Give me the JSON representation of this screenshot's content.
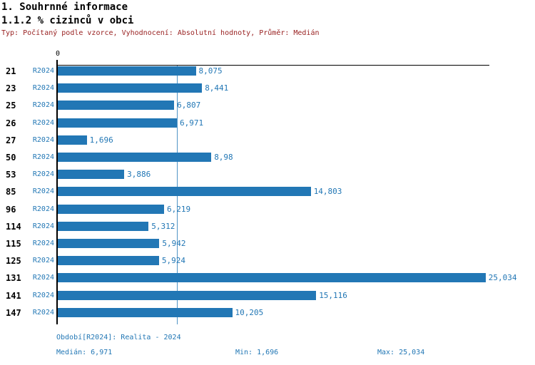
{
  "header": {
    "title1": "1. Souhrnné informace",
    "title2": "1.1.2 % cizinců v obci",
    "subtitle": "Typ: Počítaný podle vzorce, Vyhodnocení: Absolutní hodnoty, Průměr: Medián"
  },
  "chart_data": {
    "type": "bar",
    "orientation": "horizontal",
    "title": "1.1.2 % cizinců v obci",
    "axis_zero_label": "0",
    "xlim": [
      0,
      25.25
    ],
    "grid": false,
    "median_value": 6.971,
    "categories": [
      "21",
      "23",
      "25",
      "26",
      "27",
      "50",
      "53",
      "85",
      "96",
      "114",
      "115",
      "125",
      "131",
      "141",
      "147"
    ],
    "series_label": "R2024",
    "values": [
      8.075,
      8.441,
      6.807,
      6.971,
      1.696,
      8.98,
      3.886,
      14.803,
      6.219,
      5.312,
      5.942,
      5.924,
      25.034,
      15.116,
      10.205
    ],
    "rows": [
      {
        "category": "21",
        "period": "R2024",
        "value": 8.075,
        "label": "8,075"
      },
      {
        "category": "23",
        "period": "R2024",
        "value": 8.441,
        "label": "8,441"
      },
      {
        "category": "25",
        "period": "R2024",
        "value": 6.807,
        "label": "6,807"
      },
      {
        "category": "26",
        "period": "R2024",
        "value": 6.971,
        "label": "6,971"
      },
      {
        "category": "27",
        "period": "R2024",
        "value": 1.696,
        "label": "1,696"
      },
      {
        "category": "50",
        "period": "R2024",
        "value": 8.98,
        "label": "8,98"
      },
      {
        "category": "53",
        "period": "R2024",
        "value": 3.886,
        "label": "3,886"
      },
      {
        "category": "85",
        "period": "R2024",
        "value": 14.803,
        "label": "14,803"
      },
      {
        "category": "96",
        "period": "R2024",
        "value": 6.219,
        "label": "6,219"
      },
      {
        "category": "114",
        "period": "R2024",
        "value": 5.312,
        "label": "5,312"
      },
      {
        "category": "115",
        "period": "R2024",
        "value": 5.942,
        "label": "5,942"
      },
      {
        "category": "125",
        "period": "R2024",
        "value": 5.924,
        "label": "5,924"
      },
      {
        "category": "131",
        "period": "R2024",
        "value": 25.034,
        "label": "25,034"
      },
      {
        "category": "141",
        "period": "R2024",
        "value": 15.116,
        "label": "15,116"
      },
      {
        "category": "147",
        "period": "R2024",
        "value": 10.205,
        "label": "10,205"
      }
    ]
  },
  "footer": {
    "period_label": "Období[R2024]: Realita - 2024",
    "median_label": "Medián: 6,971",
    "min_label": "Min: 1,696",
    "max_label": "Max: 25,034"
  },
  "colors": {
    "bar": "#2277b5",
    "value_text": "#2277b5",
    "median_line": "#5095c6",
    "subtitle": "#992222",
    "axis": "#000000"
  }
}
